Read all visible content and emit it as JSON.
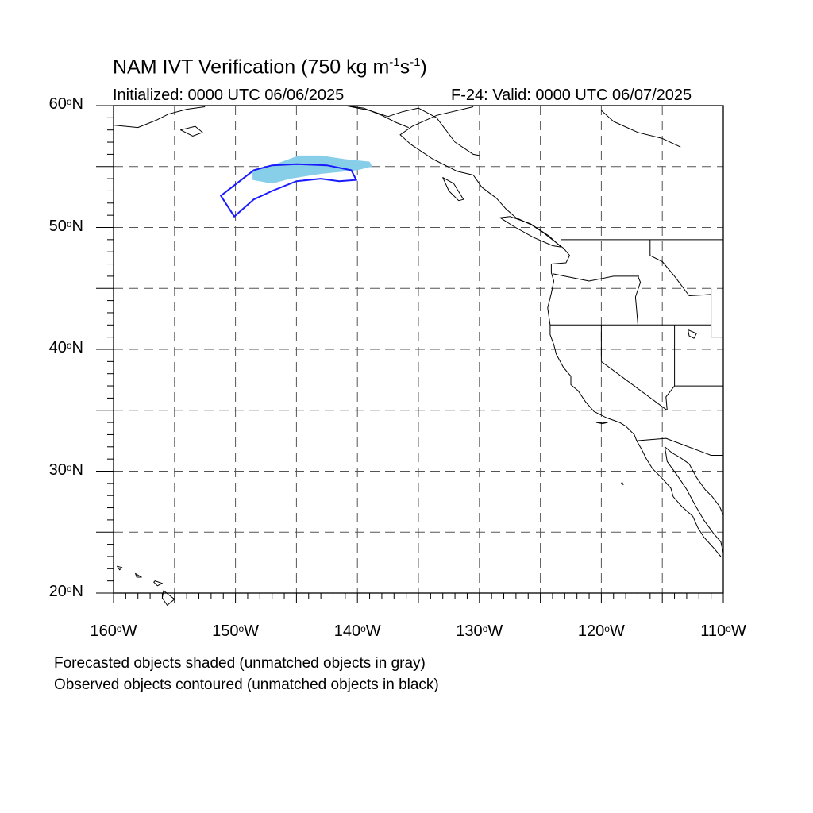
{
  "header": {
    "title_main": "NAM IVT Verification (750 kg m",
    "title_exp1": "-1",
    "title_mid": "s",
    "title_exp2": "-1",
    "title_end": ")",
    "initialized": "Initialized: 0000 UTC 06/06/2025",
    "valid": "F-24: Valid: 0000 UTC 06/07/2025"
  },
  "map": {
    "lat_labels": [
      {
        "value": 60,
        "deg": "60",
        "hemi": "N"
      },
      {
        "value": 50,
        "deg": "50",
        "hemi": "N"
      },
      {
        "value": 40,
        "deg": "40",
        "hemi": "N"
      },
      {
        "value": 30,
        "deg": "30",
        "hemi": "N"
      },
      {
        "value": 20,
        "deg": "20",
        "hemi": "N"
      }
    ],
    "lon_labels": [
      {
        "value": -160,
        "deg": "160",
        "hemi": "W"
      },
      {
        "value": -150,
        "deg": "150",
        "hemi": "W"
      },
      {
        "value": -140,
        "deg": "140",
        "hemi": "W"
      },
      {
        "value": -130,
        "deg": "130",
        "hemi": "W"
      },
      {
        "value": -120,
        "deg": "120",
        "hemi": "W"
      },
      {
        "value": -110,
        "deg": "110",
        "hemi": "W"
      }
    ],
    "lon_range": [
      -160,
      -110
    ],
    "lat_range": [
      20,
      60
    ],
    "grid_interval_deg": 5,
    "grid_style": "dashed gray",
    "forecast_object_color": "#87CEE8",
    "observed_contour_color": "#1a1aff",
    "coastline_color": "#000000",
    "forecast_object": {
      "status": "matched",
      "outline": [
        [
          -148.6,
          54.6
        ],
        [
          -147,
          55.1
        ],
        [
          -144.8,
          55.9
        ],
        [
          -143,
          55.9
        ],
        [
          -141,
          55.6
        ],
        [
          -139,
          55.4
        ],
        [
          -138.8,
          55.0
        ],
        [
          -140,
          54.7
        ],
        [
          -143,
          54.4
        ],
        [
          -145.5,
          54.0
        ],
        [
          -147,
          53.6
        ],
        [
          -148.6,
          53.9
        ]
      ]
    },
    "observed_object": {
      "status": "matched",
      "outline": [
        [
          -151.2,
          52.6
        ],
        [
          -148.5,
          54.7
        ],
        [
          -147,
          55.1
        ],
        [
          -145,
          55.2
        ],
        [
          -142.5,
          55.1
        ],
        [
          -140.5,
          54.7
        ],
        [
          -140.1,
          53.9
        ],
        [
          -141.5,
          53.8
        ],
        [
          -143,
          54.0
        ],
        [
          -145,
          53.8
        ],
        [
          -147,
          53.0
        ],
        [
          -148.5,
          52.3
        ],
        [
          -150.1,
          50.9
        ]
      ]
    }
  },
  "notes": {
    "forecast": "Forecasted objects shaded (unmatched objects in gray)",
    "observed": "Observed objects contoured (unmatched objects in black)"
  }
}
